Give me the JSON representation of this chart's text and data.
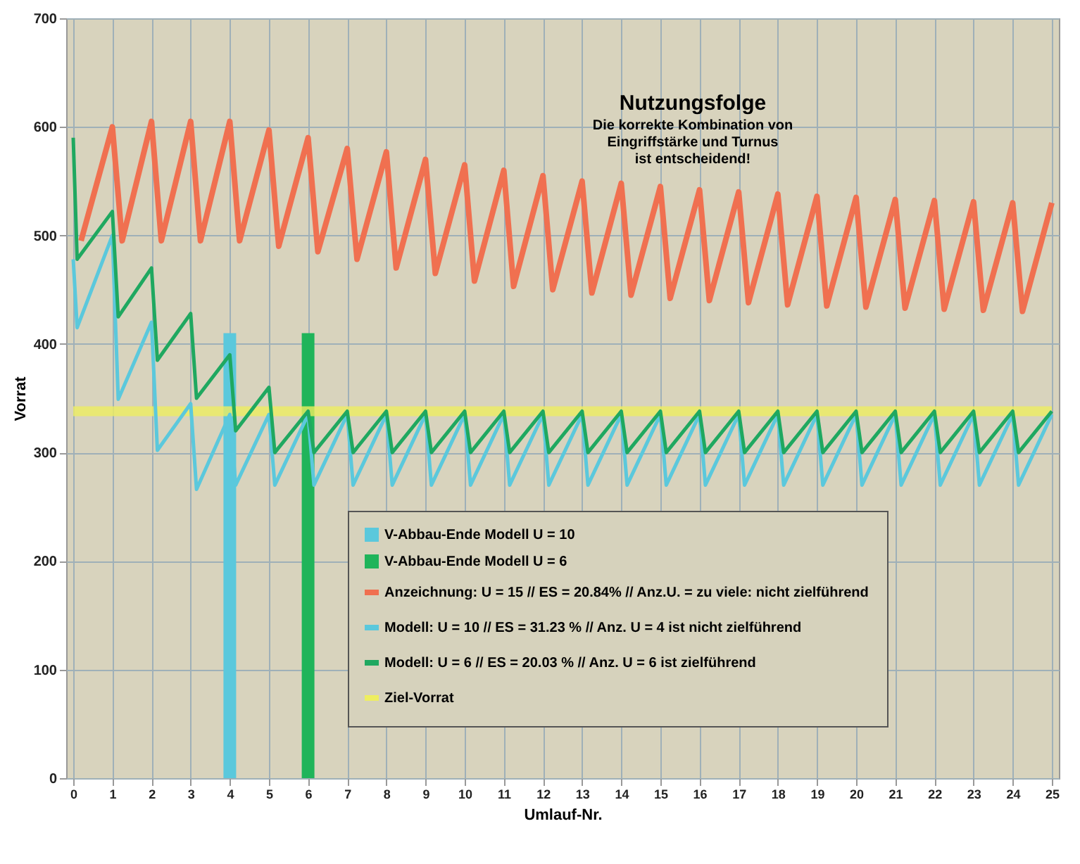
{
  "chart_data": {
    "type": "line",
    "title": "Nutzungsfolge",
    "subtitle": "Die korrekte Kombination von\nEingriffstärke und Turnus\nist entscheidend!",
    "xlabel": "Umlauf-Nr.",
    "ylabel": "Vorrat",
    "xlim": [
      0,
      25
    ],
    "xticks": [
      0,
      1,
      2,
      3,
      4,
      5,
      6,
      7,
      8,
      9,
      10,
      11,
      12,
      13,
      14,
      15,
      16,
      17,
      18,
      19,
      20,
      21,
      22,
      23,
      24,
      25
    ],
    "ylim": [
      0,
      700
    ],
    "yticks": [
      0,
      100,
      200,
      300,
      400,
      500,
      600,
      700
    ],
    "grid": true,
    "legend": "bottom right",
    "series": [
      {
        "name": "V-Abbau-Ende Modell U = 10",
        "type": "bar",
        "color": "#5bc8dc",
        "x": [
          4
        ],
        "values": [
          410
        ]
      },
      {
        "name": "V-Abbau-Ende Modell U = 6",
        "type": "bar",
        "color": "#1fb45a",
        "x": [
          6
        ],
        "values": [
          410
        ]
      },
      {
        "name": "Anzeichnung: U = 15 // ES = 20.84% // Anz.U. = zu viele: nicht zielführend",
        "color": "#f07050",
        "x": [
          0.2,
          1,
          1.25,
          2,
          2.25,
          3,
          3.25,
          4,
          4.25,
          5,
          5.25,
          6,
          6.25,
          7,
          7.25,
          8,
          8.25,
          9,
          9.25,
          10,
          10.25,
          11,
          11.25,
          12,
          12.25,
          13,
          13.25,
          14,
          14.25,
          15,
          15.25,
          16,
          16.25,
          17,
          17.25,
          18,
          18.25,
          19,
          19.25,
          20,
          20.25,
          21,
          21.25,
          22,
          22.25,
          23,
          23.25,
          24,
          24.25,
          25
        ],
        "values": [
          495,
          600,
          495,
          605,
          495,
          605,
          495,
          605,
          495,
          597,
          490,
          590,
          485,
          580,
          478,
          577,
          470,
          570,
          465,
          565,
          458,
          560,
          453,
          555,
          450,
          550,
          447,
          548,
          445,
          545,
          442,
          542,
          440,
          540,
          438,
          538,
          436,
          536,
          435,
          535,
          434,
          533,
          433,
          532,
          432,
          531,
          431,
          530,
          430,
          530
        ]
      },
      {
        "name": "Modell: U = 10 // ES = 31.23 %  //  Anz. U = 4 ist nicht zielführend",
        "color": "#5bc8dc",
        "x": [
          0,
          0.1,
          1,
          1.15,
          2,
          2.15,
          3,
          3.15,
          4,
          4.15,
          5,
          5.15,
          6,
          6.15,
          7,
          7.15,
          8,
          8.15,
          9,
          9.15,
          10,
          10.15,
          11,
          11.15,
          12,
          12.15,
          13,
          13.15,
          14,
          14.15,
          15,
          15.15,
          16,
          16.15,
          17,
          17.15,
          18,
          18.15,
          19,
          19.15,
          20,
          20.15,
          21,
          21.15,
          22,
          22.15,
          23,
          23.15,
          24,
          24.15,
          25
        ],
        "values": [
          478,
          415,
          500,
          349,
          420,
          302,
          345,
          266,
          335,
          270,
          335,
          270,
          335,
          270,
          335,
          270,
          335,
          270,
          335,
          270,
          335,
          270,
          335,
          270,
          335,
          270,
          335,
          270,
          335,
          270,
          335,
          270,
          335,
          270,
          335,
          270,
          335,
          270,
          335,
          270,
          335,
          270,
          335,
          270,
          335,
          270,
          335,
          270,
          335,
          270,
          335
        ]
      },
      {
        "name": "Modell: U = 6 // ES = 20.03 %  //  Anz. U = 6 ist zielführend",
        "color": "#1fa860",
        "x": [
          0,
          0.1,
          1,
          1.15,
          2,
          2.15,
          3,
          3.15,
          4,
          4.15,
          5,
          5.15,
          6,
          6.15,
          7,
          7.15,
          8,
          8.15,
          9,
          9.15,
          10,
          10.15,
          11,
          11.15,
          12,
          12.15,
          13,
          13.15,
          14,
          14.15,
          15,
          15.15,
          16,
          16.15,
          17,
          17.15,
          18,
          18.15,
          19,
          19.15,
          20,
          20.15,
          21,
          21.15,
          22,
          22.15,
          23,
          23.15,
          24,
          24.15,
          25
        ],
        "values": [
          590,
          478,
          522,
          425,
          470,
          385,
          428,
          350,
          390,
          320,
          360,
          300,
          338,
          300,
          338,
          300,
          338,
          300,
          338,
          300,
          338,
          300,
          338,
          300,
          338,
          300,
          338,
          300,
          338,
          300,
          338,
          300,
          338,
          300,
          338,
          300,
          338,
          300,
          338,
          300,
          338,
          300,
          338,
          300,
          338,
          300,
          338,
          300,
          338,
          300,
          338
        ]
      },
      {
        "name": "Ziel-Vorrat",
        "color": "#eeee60",
        "x": [
          0,
          25
        ],
        "values": [
          338,
          338
        ]
      }
    ]
  }
}
